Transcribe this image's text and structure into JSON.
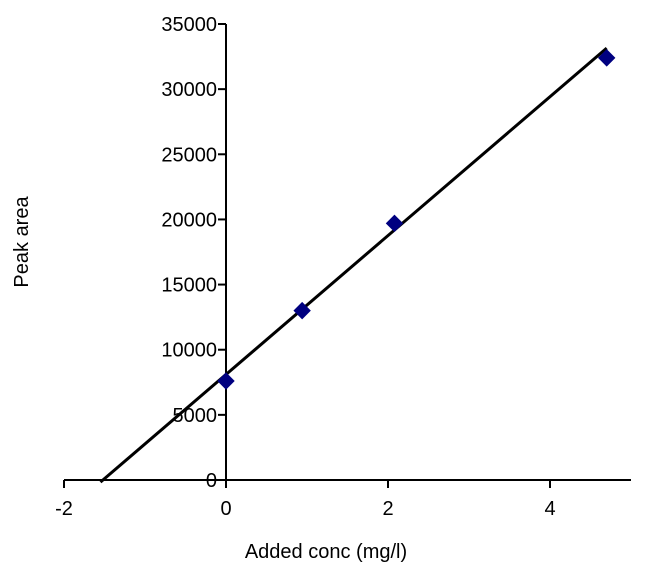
{
  "chart_data": {
    "type": "scatter",
    "title": "",
    "xlabel": "Added conc (mg/l)",
    "ylabel": "Peak area",
    "xlim": [
      -2,
      5
    ],
    "ylim": [
      0,
      35000
    ],
    "x_ticks": [
      -2,
      0,
      2,
      4
    ],
    "y_ticks": [
      0,
      5000,
      10000,
      15000,
      20000,
      25000,
      30000,
      35000
    ],
    "x_tick_labels": [
      "-2",
      "0",
      "2",
      "4"
    ],
    "y_tick_labels": [
      "0",
      "5000",
      "10000",
      "15000",
      "20000",
      "25000",
      "30000",
      "35000"
    ],
    "grid": false,
    "legend": "none",
    "series": [
      {
        "marker": "diamond",
        "color": "#000080",
        "points": [
          {
            "x": 0,
            "y": 7600
          },
          {
            "x": 0.94,
            "y": 13000
          },
          {
            "x": 2.08,
            "y": 19700
          },
          {
            "x": 4.7,
            "y": 32400
          }
        ]
      }
    ],
    "trendline": {
      "type": "linear",
      "color": "#000000",
      "x_start": -1.55,
      "x_end": 4.7,
      "slope": 5330,
      "intercept": 8100
    }
  }
}
